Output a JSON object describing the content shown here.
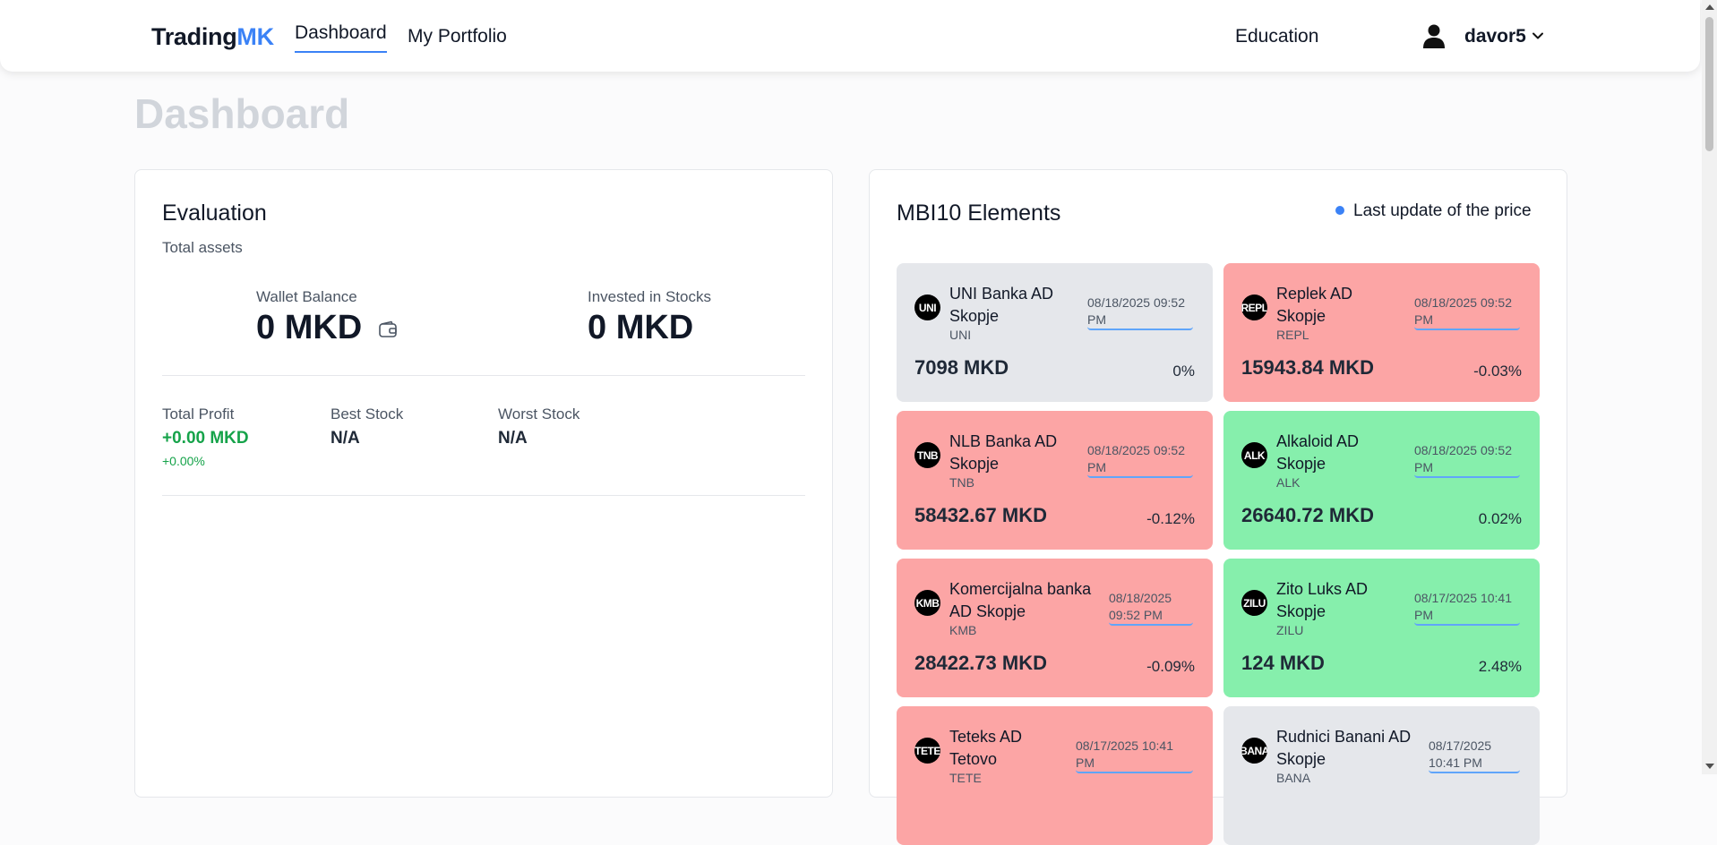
{
  "header": {
    "brand_main": "Trading",
    "brand_accent": "MK",
    "nav": {
      "dashboard": "Dashboard",
      "portfolio": "My Portfolio",
      "education": "Education"
    },
    "username": "davor5",
    "icons": {
      "user": "user-icon",
      "dropdown": "chevron-down-icon"
    }
  },
  "page": {
    "title": "Dashboard"
  },
  "evaluation": {
    "title": "Evaluation",
    "subtitle": "Total assets",
    "wallet_label": "Wallet Balance",
    "wallet_value": "0 MKD",
    "invested_label": "Invested in Stocks",
    "invested_value": "0 MKD",
    "profit_label": "Total Profit",
    "profit_value": "+0.00 MKD",
    "profit_pct": "+0.00%",
    "best_label": "Best Stock",
    "best_value": "N/A",
    "worst_label": "Worst Stock",
    "worst_value": "N/A"
  },
  "mbi": {
    "title": "MBI10 Elements",
    "legend": "Last update of the price",
    "accent_color": "#3b82f6",
    "status_colors": {
      "neutral": "#e5e7eb",
      "down": "#fca5a5",
      "up": "#86efac"
    },
    "stocks": [
      {
        "logo": "UNI",
        "name": "UNI Banka AD Skopje",
        "code": "UNI",
        "date": "08/18/2025 09:52 PM",
        "price": "7098 MKD",
        "change": "0%",
        "status": "neutral"
      },
      {
        "logo": "REPL",
        "name": "Replek AD Skopje",
        "code": "REPL",
        "date": "08/18/2025 09:52 PM",
        "price": "15943.84 MKD",
        "change": "-0.03%",
        "status": "down"
      },
      {
        "logo": "TNB",
        "name": "NLB Banka AD Skopje",
        "code": "TNB",
        "date": "08/18/2025 09:52 PM",
        "price": "58432.67 MKD",
        "change": "-0.12%",
        "status": "down"
      },
      {
        "logo": "ALK",
        "name": "Alkaloid AD Skopje",
        "code": "ALK",
        "date": "08/18/2025 09:52 PM",
        "price": "26640.72 MKD",
        "change": "0.02%",
        "status": "up"
      },
      {
        "logo": "KMB",
        "name": "Komercijalna banka AD Skopje",
        "code": "KMB",
        "date": "08/18/2025 09:52 PM",
        "price": "28422.73 MKD",
        "change": "-0.09%",
        "status": "down"
      },
      {
        "logo": "ZILU",
        "name": "Zito Luks AD Skopje",
        "code": "ZILU",
        "date": "08/17/2025 10:41 PM",
        "price": "124 MKD",
        "change": "2.48%",
        "status": "up"
      },
      {
        "logo": "TETE",
        "name": "Teteks AD Tetovo",
        "code": "TETE",
        "date": "08/17/2025 10:41 PM",
        "price": "",
        "change": "",
        "status": "down"
      },
      {
        "logo": "BANA",
        "name": "Rudnici Banani AD Skopje",
        "code": "BANA",
        "date": "08/17/2025 10:41 PM",
        "price": "",
        "change": "",
        "status": "neutral"
      }
    ]
  }
}
